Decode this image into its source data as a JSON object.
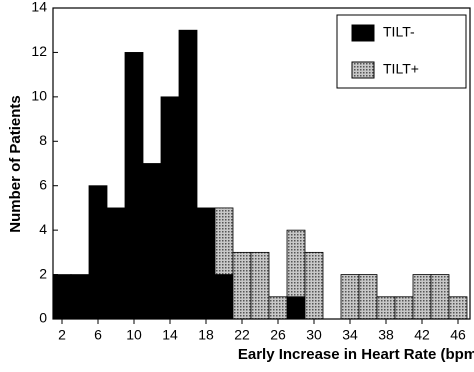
{
  "chart_data": {
    "type": "histogram",
    "xlabel": "Early Increase in Heart Rate (bpm)",
    "ylabel": "Number of Patients",
    "bins": [
      1,
      3,
      5,
      7,
      9,
      11,
      13,
      15,
      17,
      19,
      21,
      23,
      25,
      27,
      29,
      31,
      33,
      35,
      37,
      39,
      41,
      43,
      45,
      47
    ],
    "series": [
      {
        "name": "TILT-",
        "color": "#000000",
        "values": [
          2,
          2,
          6,
          5,
          12,
          7,
          10,
          13,
          5,
          2,
          0,
          0,
          0,
          1,
          0,
          0,
          0,
          0,
          0,
          0,
          0,
          0,
          0
        ]
      },
      {
        "name": "TILT+",
        "color": "#8c8c8c",
        "values": [
          0,
          0,
          0,
          0,
          0,
          0,
          0,
          0,
          0,
          3,
          3,
          3,
          1,
          3,
          3,
          0,
          2,
          2,
          1,
          1,
          2,
          2,
          1
        ]
      }
    ],
    "stacked": true,
    "xlim": [
      1,
      47
    ],
    "xticks": [
      2,
      6,
      10,
      14,
      18,
      22,
      26,
      30,
      34,
      38,
      42,
      46
    ],
    "ylim": [
      0,
      14
    ],
    "yticks": [
      0,
      2,
      4,
      6,
      8,
      10,
      12,
      14
    ],
    "legend": "upper right"
  }
}
